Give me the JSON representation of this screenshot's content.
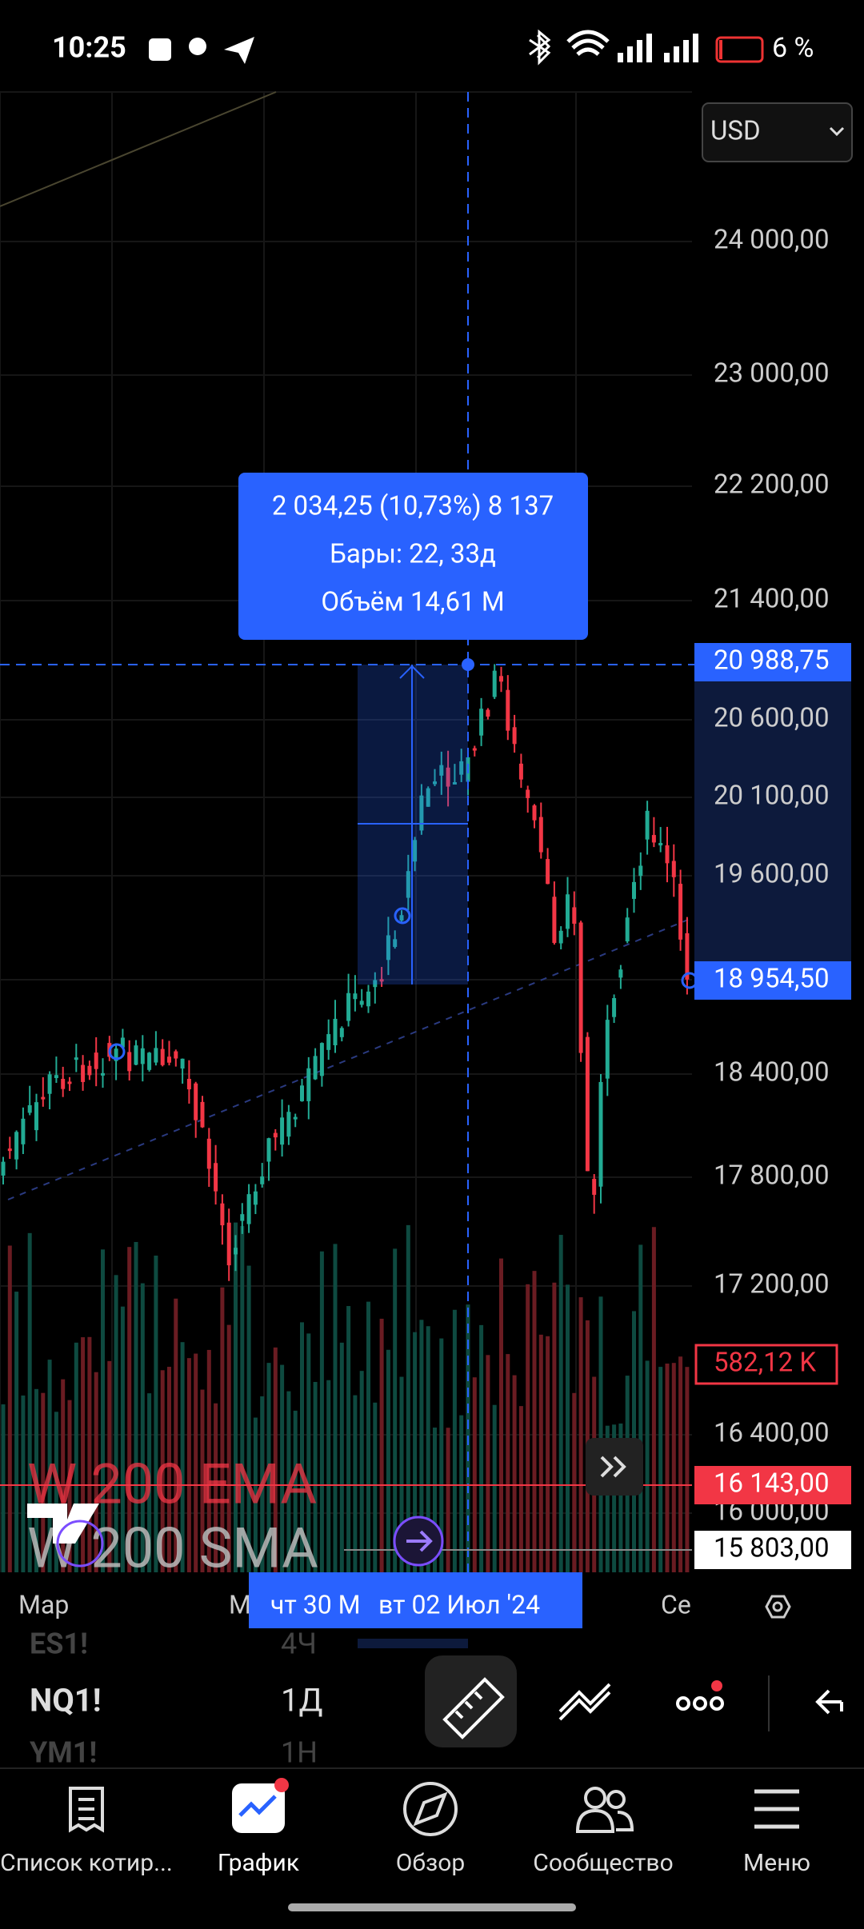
{
  "status_bar": {
    "time": "10:25",
    "battery": "6 %"
  },
  "currency": "USD",
  "price_scale": [
    "24 000,00",
    "23 000,00",
    "22 200,00",
    "21 400,00",
    "20 600,00",
    "20 100,00",
    "19 600,00",
    "18 400,00",
    "17 800,00",
    "17 200,00",
    "16 400,00",
    "16 000,00"
  ],
  "price_markers": {
    "crosshair": "20 988,75",
    "measure_low": "18 954,50",
    "volume": "582,12 K",
    "ema": "16 143,00",
    "sma": "15 803,00"
  },
  "measure_tooltip": [
    "2 034,25 (10,73%) 8 137",
    "Бары: 22, 33д",
    "Объём 14,61 M"
  ],
  "legend": [
    "W 200 EMA",
    "W 200 SMA"
  ],
  "time_scale": {
    "labels": [
      "Мар",
      "М",
      "Се"
    ],
    "crosshair": [
      "чт 30 М",
      "вт 02 Июл '24"
    ]
  },
  "watchlist": [
    {
      "symbol": "ES1!",
      "interval": "4Ч"
    },
    {
      "symbol": "NQ1!",
      "interval": "1Д"
    },
    {
      "symbol": "YM1!",
      "interval": "1Н"
    }
  ],
  "nav": [
    "Список котир...",
    "График",
    "Обзор",
    "Сообщество",
    "Меню"
  ]
}
